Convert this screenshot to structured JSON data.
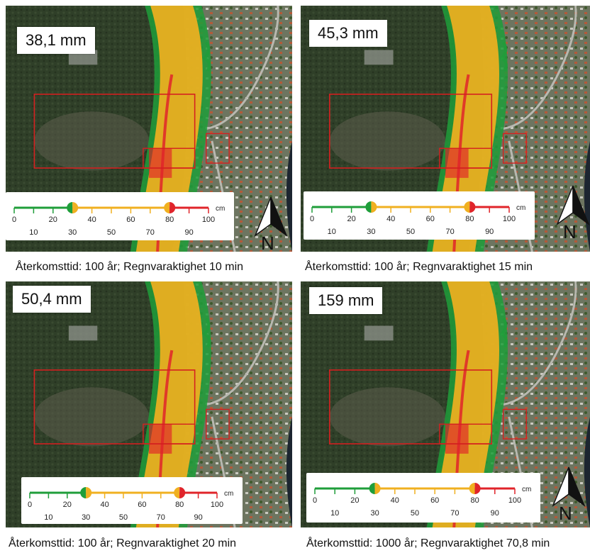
{
  "panels": [
    {
      "rainfall": "38,1 mm",
      "caption": "Återkomsttid: 100 år; Regnvaraktighet 10 min"
    },
    {
      "rainfall": "45,3 mm",
      "caption": "Återkomsttid: 100 år; Regnvaraktighet 15 min"
    },
    {
      "rainfall": "50,4 mm",
      "caption": "Återkomsttid: 100 år; Regnvaraktighet 20 min"
    },
    {
      "rainfall": "159 mm",
      "caption": "Återkomsttid: 1000 år; Regnvaraktighet 70,8 min"
    }
  ],
  "legend": {
    "unit": "cm",
    "ticks": [
      "0",
      "10",
      "20",
      "30",
      "40",
      "50",
      "60",
      "70",
      "80",
      "90",
      "100"
    ],
    "thresholds": [
      30,
      80
    ],
    "colors": {
      "low": "#1f9e3a",
      "mid": "#f0b020",
      "high": "#e0242a"
    }
  },
  "north_label": "N",
  "colors": {
    "study_area": "#d42020",
    "forest": "#2f3f28",
    "village": "#6d7560",
    "water": "#1c2530"
  }
}
